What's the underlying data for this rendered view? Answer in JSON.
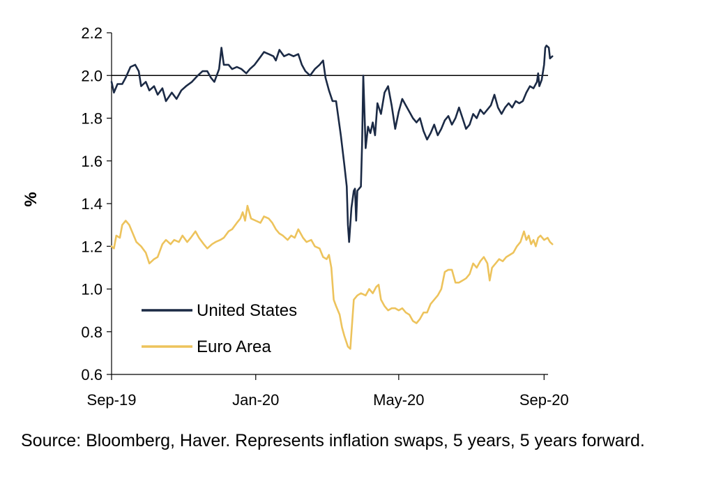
{
  "chart_data": {
    "type": "line",
    "ylabel": "%",
    "ylim": [
      0.6,
      2.2
    ],
    "yticks": [
      "2.2",
      "2.0",
      "1.8",
      "1.6",
      "1.4",
      "1.2",
      "1.0",
      "0.8",
      "0.6"
    ],
    "xlim": [
      "2019-09-01",
      "2020-09-02"
    ],
    "xticks": [
      {
        "label": "Sep-19",
        "date": "2019-09-01"
      },
      {
        "label": "Jan-20",
        "date": "2020-01-01"
      },
      {
        "label": "May-20",
        "date": "2020-05-01"
      },
      {
        "label": "Sep-20",
        "date": "2020-09-01"
      }
    ],
    "reference_line": 2.0,
    "legend_position": "lower-left",
    "series": [
      {
        "name": "United States",
        "color": "#1b2a45",
        "points": [
          [
            "2019-09-01",
            1.97
          ],
          [
            "2019-09-03",
            1.92
          ],
          [
            "2019-09-06",
            1.96
          ],
          [
            "2019-09-10",
            1.96
          ],
          [
            "2019-09-13",
            1.99
          ],
          [
            "2019-09-17",
            2.04
          ],
          [
            "2019-09-21",
            2.05
          ],
          [
            "2019-09-24",
            2.02
          ],
          [
            "2019-09-26",
            1.95
          ],
          [
            "2019-09-30",
            1.97
          ],
          [
            "2019-10-03",
            1.93
          ],
          [
            "2019-10-07",
            1.95
          ],
          [
            "2019-10-10",
            1.91
          ],
          [
            "2019-10-14",
            1.94
          ],
          [
            "2019-10-17",
            1.88
          ],
          [
            "2019-10-22",
            1.92
          ],
          [
            "2019-10-26",
            1.89
          ],
          [
            "2019-10-30",
            1.93
          ],
          [
            "2019-11-03",
            1.95
          ],
          [
            "2019-11-08",
            1.97
          ],
          [
            "2019-11-13",
            2.0
          ],
          [
            "2019-11-17",
            2.02
          ],
          [
            "2019-11-21",
            2.02
          ],
          [
            "2019-11-24",
            1.99
          ],
          [
            "2019-11-27",
            1.97
          ],
          [
            "2019-12-01",
            2.03
          ],
          [
            "2019-12-03",
            2.13
          ],
          [
            "2019-12-05",
            2.05
          ],
          [
            "2019-12-09",
            2.05
          ],
          [
            "2019-12-12",
            2.03
          ],
          [
            "2019-12-16",
            2.04
          ],
          [
            "2019-12-20",
            2.03
          ],
          [
            "2019-12-24",
            2.01
          ],
          [
            "2019-12-27",
            2.03
          ],
          [
            "2019-12-31",
            2.05
          ],
          [
            "2020-01-04",
            2.08
          ],
          [
            "2020-01-08",
            2.11
          ],
          [
            "2020-01-12",
            2.1
          ],
          [
            "2020-01-16",
            2.09
          ],
          [
            "2020-01-18",
            2.07
          ],
          [
            "2020-01-21",
            2.12
          ],
          [
            "2020-01-25",
            2.09
          ],
          [
            "2020-01-29",
            2.1
          ],
          [
            "2020-02-02",
            2.09
          ],
          [
            "2020-02-06",
            2.1
          ],
          [
            "2020-02-09",
            2.05
          ],
          [
            "2020-02-12",
            2.02
          ],
          [
            "2020-02-16",
            2.0
          ],
          [
            "2020-02-20",
            2.03
          ],
          [
            "2020-02-24",
            2.05
          ],
          [
            "2020-02-27",
            2.07
          ],
          [
            "2020-02-29",
            1.99
          ],
          [
            "2020-03-03",
            1.93
          ],
          [
            "2020-03-06",
            1.88
          ],
          [
            "2020-03-09",
            1.88
          ],
          [
            "2020-03-11",
            1.8
          ],
          [
            "2020-03-13",
            1.72
          ],
          [
            "2020-03-16",
            1.58
          ],
          [
            "2020-03-18",
            1.48
          ],
          [
            "2020-03-19",
            1.3
          ],
          [
            "2020-03-20",
            1.22
          ],
          [
            "2020-03-22",
            1.38
          ],
          [
            "2020-03-24",
            1.46
          ],
          [
            "2020-03-25",
            1.47
          ],
          [
            "2020-03-26",
            1.32
          ],
          [
            "2020-03-27",
            1.46
          ],
          [
            "2020-03-30",
            1.48
          ],
          [
            "2020-03-31",
            1.68
          ],
          [
            "2020-04-01",
            2.0
          ],
          [
            "2020-04-03",
            1.66
          ],
          [
            "2020-04-05",
            1.76
          ],
          [
            "2020-04-07",
            1.73
          ],
          [
            "2020-04-09",
            1.78
          ],
          [
            "2020-04-11",
            1.72
          ],
          [
            "2020-04-13",
            1.87
          ],
          [
            "2020-04-16",
            1.82
          ],
          [
            "2020-04-19",
            1.92
          ],
          [
            "2020-04-22",
            1.95
          ],
          [
            "2020-04-25",
            1.86
          ],
          [
            "2020-04-28",
            1.75
          ],
          [
            "2020-05-01",
            1.83
          ],
          [
            "2020-05-04",
            1.89
          ],
          [
            "2020-05-07",
            1.86
          ],
          [
            "2020-05-10",
            1.83
          ],
          [
            "2020-05-13",
            1.8
          ],
          [
            "2020-05-16",
            1.78
          ],
          [
            "2020-05-19",
            1.8
          ],
          [
            "2020-05-22",
            1.74
          ],
          [
            "2020-05-25",
            1.7
          ],
          [
            "2020-05-28",
            1.73
          ],
          [
            "2020-05-31",
            1.77
          ],
          [
            "2020-06-03",
            1.72
          ],
          [
            "2020-06-06",
            1.75
          ],
          [
            "2020-06-09",
            1.79
          ],
          [
            "2020-06-12",
            1.81
          ],
          [
            "2020-06-15",
            1.77
          ],
          [
            "2020-06-18",
            1.8
          ],
          [
            "2020-06-21",
            1.85
          ],
          [
            "2020-06-24",
            1.8
          ],
          [
            "2020-06-27",
            1.75
          ],
          [
            "2020-06-30",
            1.77
          ],
          [
            "2020-07-03",
            1.82
          ],
          [
            "2020-07-06",
            1.8
          ],
          [
            "2020-07-09",
            1.84
          ],
          [
            "2020-07-12",
            1.82
          ],
          [
            "2020-07-15",
            1.84
          ],
          [
            "2020-07-18",
            1.86
          ],
          [
            "2020-07-21",
            1.91
          ],
          [
            "2020-07-24",
            1.85
          ],
          [
            "2020-07-27",
            1.82
          ],
          [
            "2020-07-30",
            1.85
          ],
          [
            "2020-08-02",
            1.87
          ],
          [
            "2020-08-05",
            1.85
          ],
          [
            "2020-08-08",
            1.88
          ],
          [
            "2020-08-11",
            1.87
          ],
          [
            "2020-08-14",
            1.88
          ],
          [
            "2020-08-17",
            1.92
          ],
          [
            "2020-08-20",
            1.95
          ],
          [
            "2020-08-23",
            1.94
          ],
          [
            "2020-08-26",
            1.97
          ],
          [
            "2020-08-27",
            2.01
          ],
          [
            "2020-08-28",
            1.95
          ],
          [
            "2020-08-30",
            1.98
          ],
          [
            "2020-09-01",
            2.05
          ],
          [
            "2020-09-02",
            2.13
          ],
          [
            "2020-09-03",
            2.14
          ],
          [
            "2020-09-05",
            2.13
          ],
          [
            "2020-09-06",
            2.08
          ],
          [
            "2020-09-08",
            2.09
          ]
        ]
      },
      {
        "name": "Euro Area",
        "color": "#edc35c",
        "points": [
          [
            "2019-09-01",
            1.2
          ],
          [
            "2019-09-03",
            1.19
          ],
          [
            "2019-09-05",
            1.25
          ],
          [
            "2019-09-08",
            1.24
          ],
          [
            "2019-09-10",
            1.3
          ],
          [
            "2019-09-13",
            1.32
          ],
          [
            "2019-09-16",
            1.3
          ],
          [
            "2019-09-19",
            1.26
          ],
          [
            "2019-09-22",
            1.22
          ],
          [
            "2019-09-26",
            1.2
          ],
          [
            "2019-09-30",
            1.17
          ],
          [
            "2019-10-03",
            1.12
          ],
          [
            "2019-10-07",
            1.14
          ],
          [
            "2019-10-10",
            1.15
          ],
          [
            "2019-10-14",
            1.21
          ],
          [
            "2019-10-17",
            1.23
          ],
          [
            "2019-10-21",
            1.21
          ],
          [
            "2019-10-24",
            1.23
          ],
          [
            "2019-10-28",
            1.22
          ],
          [
            "2019-10-31",
            1.25
          ],
          [
            "2019-11-04",
            1.22
          ],
          [
            "2019-11-07",
            1.24
          ],
          [
            "2019-11-11",
            1.27
          ],
          [
            "2019-11-14",
            1.24
          ],
          [
            "2019-11-18",
            1.21
          ],
          [
            "2019-11-21",
            1.19
          ],
          [
            "2019-11-25",
            1.21
          ],
          [
            "2019-11-28",
            1.22
          ],
          [
            "2019-12-02",
            1.23
          ],
          [
            "2019-12-05",
            1.24
          ],
          [
            "2019-12-09",
            1.27
          ],
          [
            "2019-12-12",
            1.28
          ],
          [
            "2019-12-16",
            1.31
          ],
          [
            "2019-12-19",
            1.33
          ],
          [
            "2019-12-21",
            1.36
          ],
          [
            "2019-12-23",
            1.32
          ],
          [
            "2019-12-25",
            1.39
          ],
          [
            "2019-12-28",
            1.33
          ],
          [
            "2020-01-01",
            1.32
          ],
          [
            "2020-01-05",
            1.31
          ],
          [
            "2020-01-08",
            1.34
          ],
          [
            "2020-01-12",
            1.33
          ],
          [
            "2020-01-15",
            1.31
          ],
          [
            "2020-01-18",
            1.28
          ],
          [
            "2020-01-21",
            1.26
          ],
          [
            "2020-01-24",
            1.25
          ],
          [
            "2020-01-28",
            1.23
          ],
          [
            "2020-01-31",
            1.25
          ],
          [
            "2020-02-03",
            1.24
          ],
          [
            "2020-02-06",
            1.28
          ],
          [
            "2020-02-10",
            1.24
          ],
          [
            "2020-02-13",
            1.22
          ],
          [
            "2020-02-17",
            1.23
          ],
          [
            "2020-02-20",
            1.2
          ],
          [
            "2020-02-24",
            1.19
          ],
          [
            "2020-02-27",
            1.15
          ],
          [
            "2020-03-01",
            1.14
          ],
          [
            "2020-03-03",
            1.16
          ],
          [
            "2020-03-05",
            1.1
          ],
          [
            "2020-03-07",
            0.95
          ],
          [
            "2020-03-09",
            0.92
          ],
          [
            "2020-03-12",
            0.88
          ],
          [
            "2020-03-14",
            0.82
          ],
          [
            "2020-03-16",
            0.78
          ],
          [
            "2020-03-19",
            0.73
          ],
          [
            "2020-03-21",
            0.72
          ],
          [
            "2020-03-24",
            0.95
          ],
          [
            "2020-03-27",
            0.97
          ],
          [
            "2020-03-30",
            0.98
          ],
          [
            "2020-04-03",
            0.97
          ],
          [
            "2020-04-06",
            1.0
          ],
          [
            "2020-04-09",
            0.98
          ],
          [
            "2020-04-12",
            1.01
          ],
          [
            "2020-04-14",
            1.02
          ],
          [
            "2020-04-16",
            0.95
          ],
          [
            "2020-04-19",
            0.92
          ],
          [
            "2020-04-22",
            0.9
          ],
          [
            "2020-04-25",
            0.91
          ],
          [
            "2020-04-28",
            0.91
          ],
          [
            "2020-05-01",
            0.9
          ],
          [
            "2020-05-04",
            0.91
          ],
          [
            "2020-05-07",
            0.89
          ],
          [
            "2020-05-10",
            0.88
          ],
          [
            "2020-05-13",
            0.85
          ],
          [
            "2020-05-16",
            0.84
          ],
          [
            "2020-05-19",
            0.86
          ],
          [
            "2020-05-22",
            0.89
          ],
          [
            "2020-05-25",
            0.89
          ],
          [
            "2020-05-28",
            0.93
          ],
          [
            "2020-05-31",
            0.95
          ],
          [
            "2020-06-03",
            0.97
          ],
          [
            "2020-06-06",
            1.0
          ],
          [
            "2020-06-09",
            1.08
          ],
          [
            "2020-06-12",
            1.09
          ],
          [
            "2020-06-15",
            1.09
          ],
          [
            "2020-06-18",
            1.03
          ],
          [
            "2020-06-21",
            1.03
          ],
          [
            "2020-06-24",
            1.04
          ],
          [
            "2020-06-27",
            1.05
          ],
          [
            "2020-06-30",
            1.07
          ],
          [
            "2020-07-03",
            1.12
          ],
          [
            "2020-07-06",
            1.1
          ],
          [
            "2020-07-09",
            1.13
          ],
          [
            "2020-07-12",
            1.15
          ],
          [
            "2020-07-15",
            1.12
          ],
          [
            "2020-07-17",
            1.04
          ],
          [
            "2020-07-19",
            1.1
          ],
          [
            "2020-07-22",
            1.12
          ],
          [
            "2020-07-25",
            1.14
          ],
          [
            "2020-07-28",
            1.13
          ],
          [
            "2020-07-31",
            1.15
          ],
          [
            "2020-08-03",
            1.16
          ],
          [
            "2020-08-06",
            1.17
          ],
          [
            "2020-08-09",
            1.2
          ],
          [
            "2020-08-12",
            1.22
          ],
          [
            "2020-08-15",
            1.27
          ],
          [
            "2020-08-17",
            1.23
          ],
          [
            "2020-08-19",
            1.25
          ],
          [
            "2020-08-21",
            1.21
          ],
          [
            "2020-08-23",
            1.23
          ],
          [
            "2020-08-25",
            1.2
          ],
          [
            "2020-08-27",
            1.24
          ],
          [
            "2020-08-29",
            1.25
          ],
          [
            "2020-09-01",
            1.23
          ],
          [
            "2020-09-04",
            1.24
          ],
          [
            "2020-09-06",
            1.22
          ],
          [
            "2020-09-08",
            1.21
          ]
        ]
      }
    ]
  },
  "source_note": "Source: Bloomberg, Haver. Represents inflation swaps, 5 years, 5 years forward."
}
